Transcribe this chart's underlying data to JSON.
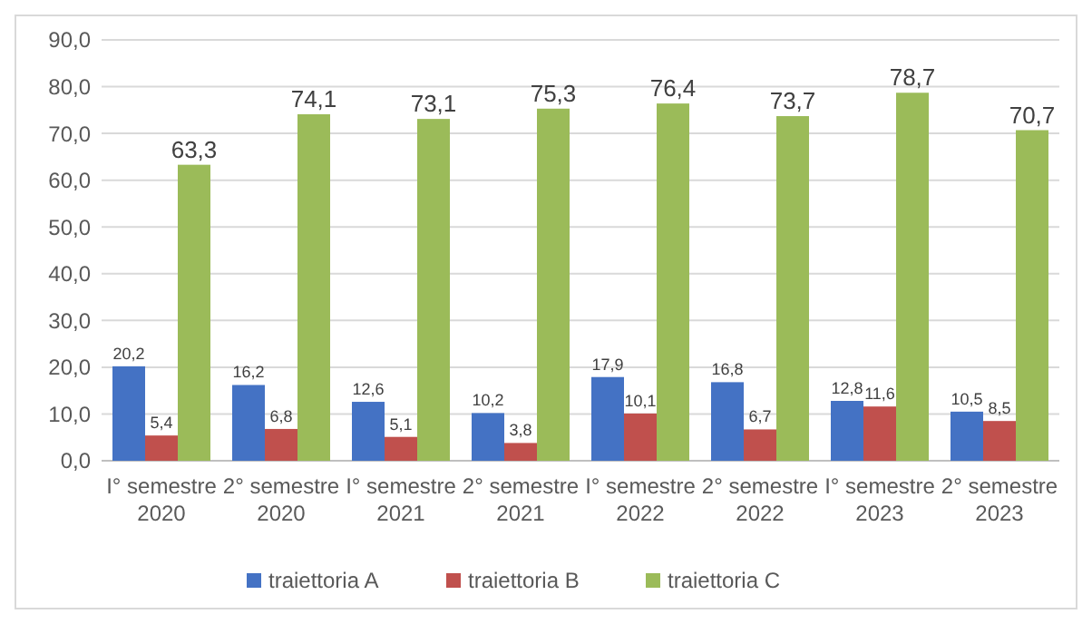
{
  "chart_data": {
    "type": "bar",
    "categories": [
      "I° semestre 2020",
      "2° semestre 2020",
      "I° semestre 2021",
      "2° semestre 2021",
      "I° semestre 2022",
      "2° semestre 2022",
      "I° semestre 2023",
      "2° semestre 2023"
    ],
    "series": [
      {
        "name": "traiettoria A",
        "color": "#4472c4",
        "values": [
          20.2,
          16.2,
          12.6,
          10.2,
          17.9,
          16.8,
          12.8,
          10.5
        ],
        "value_labels": [
          "20,2",
          "16,2",
          "12,6",
          "10,2",
          "17,9",
          "16,8",
          "12,8",
          "10,5"
        ]
      },
      {
        "name": "traiettoria B",
        "color": "#c0504d",
        "values": [
          5.4,
          6.8,
          5.1,
          3.8,
          10.1,
          6.7,
          11.6,
          8.5
        ],
        "value_labels": [
          "5,4",
          "6,8",
          "5,1",
          "3,8",
          "10,1",
          "6,7",
          "11,6",
          "8,5"
        ]
      },
      {
        "name": "traiettoria C",
        "color": "#9bbb59",
        "values": [
          63.3,
          74.1,
          73.1,
          75.3,
          76.4,
          73.7,
          78.7,
          70.7
        ],
        "value_labels": [
          "63,3",
          "74,1",
          "73,1",
          "75,3",
          "76,4",
          "73,7",
          "78,7",
          "70,7"
        ]
      }
    ],
    "ylim": [
      0,
      90
    ],
    "yticks": [
      {
        "value": 0,
        "label": "0,0"
      },
      {
        "value": 10,
        "label": "10,0"
      },
      {
        "value": 20,
        "label": "20,0"
      },
      {
        "value": 30,
        "label": "30,0"
      },
      {
        "value": 40,
        "label": "40,0"
      },
      {
        "value": 50,
        "label": "50,0"
      },
      {
        "value": 60,
        "label": "60,0"
      },
      {
        "value": 70,
        "label": "70,0"
      },
      {
        "value": 80,
        "label": "80,0"
      },
      {
        "value": 90,
        "label": "90,0"
      }
    ],
    "grid": "y",
    "legend": "bottom"
  }
}
